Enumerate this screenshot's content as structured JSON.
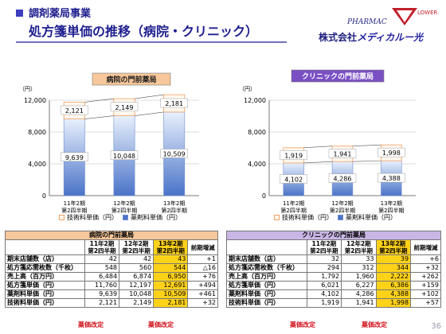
{
  "header": {
    "title1": "調剤薬局事業",
    "title2": "処方箋単価の推移（病院・クリニック）",
    "logo_text": "PHARMAC",
    "logo_text2": "LOWER",
    "company_prefix": "株式会社",
    "company_brand": "メディカルー光"
  },
  "charts": {
    "hospital_title": "病院の門前薬局",
    "clinic_title": "クリニックの門前薬局",
    "y_unit": "（円）"
  },
  "chart_data": [
    {
      "type": "bar",
      "title": "病院の門前薬局",
      "ylabel": "（円）",
      "ylim": [
        0,
        12000
      ],
      "yticks": [
        "0",
        "4,000",
        "8,000",
        "12,000"
      ],
      "categories": [
        "11年2期\n第2四半期",
        "12年2期\n第2四半期",
        "13年2期\n第2四半期"
      ],
      "series": [
        {
          "name": "薬剤料単価（円）",
          "values": [
            9639,
            10048,
            10509
          ],
          "labels": [
            "9,639",
            "10,048",
            "10,509"
          ]
        },
        {
          "name": "技術料単価（円）",
          "values": [
            2121,
            2149,
            2181
          ],
          "labels": [
            "2,121",
            "2,149",
            "2,181"
          ]
        }
      ]
    },
    {
      "type": "bar",
      "title": "クリニックの門前薬局",
      "ylabel": "（円）",
      "ylim": [
        0,
        12000
      ],
      "yticks": [
        "0",
        "4,000",
        "8,000",
        "12,000"
      ],
      "categories": [
        "11年2期\n第2四半期",
        "12年2期\n第2四半期",
        "13年2期\n第2四半期"
      ],
      "series": [
        {
          "name": "薬剤料単価（円）",
          "values": [
            4102,
            4286,
            4388
          ],
          "labels": [
            "4,102",
            "4,286",
            "4,388"
          ]
        },
        {
          "name": "技術料単価（円）",
          "values": [
            1919,
            1941,
            1998
          ],
          "labels": [
            "1,919",
            "1,941",
            "1,998"
          ]
        }
      ]
    }
  ],
  "legend": {
    "tech": "技術料単価（円）",
    "drug": "薬剤料単価（円）"
  },
  "colors": {
    "tech_fill": "#fff7ee",
    "tech_stroke": "#f0a060",
    "drug_fill_top": "#e8f0fc",
    "drug_fill_bottom": "#4a73c8",
    "drug_stroke": "#7090d0",
    "header_hospital": "#f6c79a",
    "header_clinic": "#c9b6e6",
    "highlight": "#ffd21a"
  },
  "table_hospital": {
    "title": "病院の門前薬局",
    "cols": [
      "11年2期\n第2四半期",
      "12年2期\n第2四半期",
      "13年2期\n第2四半期",
      "前期増減"
    ],
    "rows": [
      {
        "label": "期末店舗数（店）",
        "v": [
          "42",
          "42",
          "43",
          "+1"
        ]
      },
      {
        "label": "処方箋応需枚数（千枚）",
        "v": [
          "548",
          "560",
          "544",
          "△16"
        ]
      },
      {
        "label": "売上高（百万円）",
        "v": [
          "6,484",
          "6,874",
          "6,950",
          "+76"
        ]
      },
      {
        "label": "処方箋単価（円）",
        "v": [
          "11,760",
          "12,197",
          "12,691",
          "+494"
        ]
      },
      {
        "label": "薬剤料単価（円）",
        "v": [
          "9,639",
          "10,048",
          "10,509",
          "+461"
        ]
      },
      {
        "label": "技術料単価（円）",
        "v": [
          "2,121",
          "2,149",
          "2,181",
          "+32"
        ]
      }
    ],
    "notes": [
      "薬価改定",
      "薬価改定"
    ]
  },
  "table_clinic": {
    "title": "クリニックの門前薬局",
    "cols": [
      "11年2期\n第2四半期",
      "12年2期\n第2四半期",
      "13年2期\n第2四半期",
      "前期増減"
    ],
    "rows": [
      {
        "label": "期末店舗数（店）",
        "v": [
          "32",
          "33",
          "39",
          "+6"
        ]
      },
      {
        "label": "処方箋応需枚数（千枚）",
        "v": [
          "294",
          "312",
          "344",
          "+32"
        ]
      },
      {
        "label": "売上高（百万円）",
        "v": [
          "1,792",
          "1,960",
          "2,222",
          "+262"
        ]
      },
      {
        "label": "処方箋単価（円）",
        "v": [
          "6,021",
          "6,227",
          "6,386",
          "+159"
        ]
      },
      {
        "label": "薬剤料単価（円）",
        "v": [
          "4,102",
          "4,286",
          "4,388",
          "+102"
        ]
      },
      {
        "label": "技術料単価（円）",
        "v": [
          "1,919",
          "1,941",
          "1,998",
          "+57"
        ]
      }
    ],
    "notes": [
      "薬価改定",
      "薬価改定"
    ]
  },
  "page_number": "36"
}
